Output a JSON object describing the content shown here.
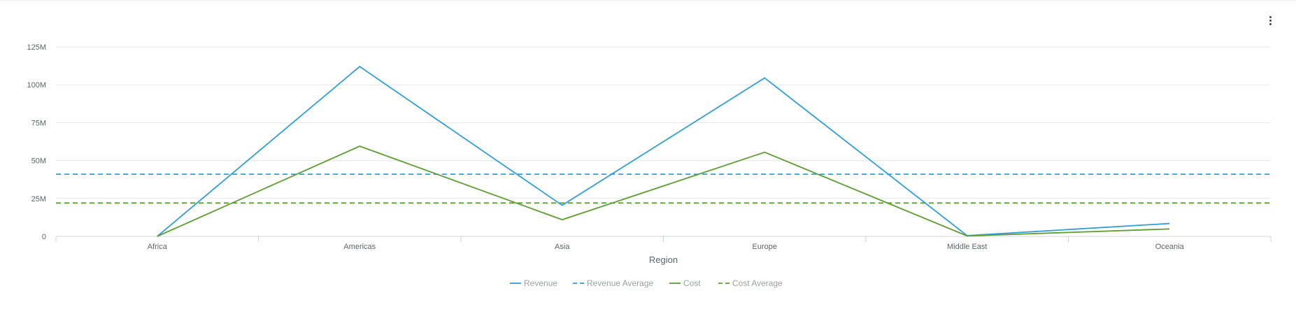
{
  "chart_data": {
    "type": "line",
    "xlabel": "Region",
    "ylabel": "",
    "categories": [
      "Africa",
      "Americas",
      "Asia",
      "Europe",
      "Middle East",
      "Oceania"
    ],
    "ylim": [
      0,
      125000000
    ],
    "yticks": [
      {
        "value": 0,
        "label": "0"
      },
      {
        "value": 25000000,
        "label": "25M"
      },
      {
        "value": 50000000,
        "label": "50M"
      },
      {
        "value": 75000000,
        "label": "75M"
      },
      {
        "value": 100000000,
        "label": "100M"
      },
      {
        "value": 125000000,
        "label": "125M"
      }
    ],
    "grid": true,
    "legend_position": "bottom",
    "series": [
      {
        "name": "Revenue",
        "color": "#2f9fd8",
        "style": "solid",
        "values": [
          0,
          112000000,
          20500000,
          104500000,
          500000,
          8500000
        ]
      },
      {
        "name": "Cost",
        "color": "#5c9e31",
        "style": "solid",
        "values": [
          0,
          59500000,
          11000000,
          55500000,
          300000,
          4900000
        ]
      }
    ],
    "reference_lines": [
      {
        "name": "Revenue Average",
        "color": "#2f9fd8",
        "style": "dashed",
        "value": 41000000
      },
      {
        "name": "Cost Average",
        "color": "#5c9e31",
        "style": "dashed",
        "value": 22000000
      }
    ],
    "legend": [
      "Revenue",
      "Revenue Average",
      "Cost",
      "Cost Average"
    ]
  },
  "menu": {
    "icon": "more-vert-icon"
  }
}
